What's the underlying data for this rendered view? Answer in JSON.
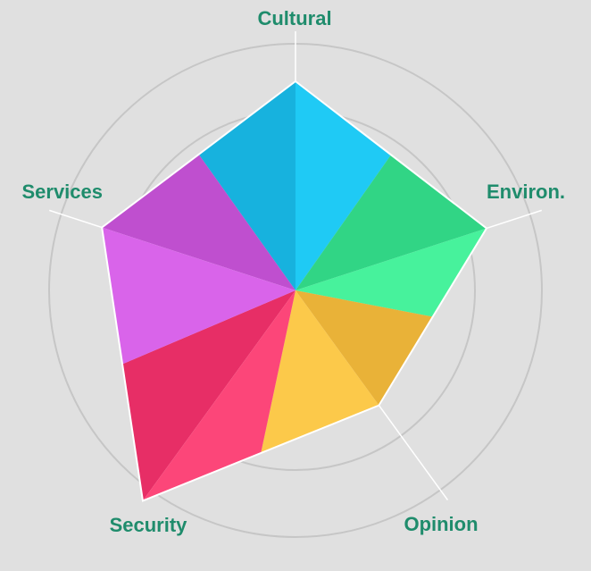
{
  "chart_data": {
    "type": "radar",
    "axes": [
      "Cultural",
      "Environ.",
      "Opinion",
      "Security",
      "Services"
    ],
    "values": [
      0.78,
      0.75,
      0.53,
      0.97,
      0.76
    ],
    "range": [
      0,
      1
    ],
    "rings": [
      0.67,
      0.92
    ],
    "grid": true,
    "colors": {
      "Cultural": [
        "#1fcaf5",
        "#17b2de"
      ],
      "Environ.": [
        "#47f29c",
        "#31d585"
      ],
      "Opinion": [
        "#fcc94a",
        "#e9b238"
      ],
      "Security": [
        "#e72e66",
        "#fc4679"
      ],
      "Services": [
        "#bf4fcf",
        "#d964ea"
      ],
      "grid": "#c6c6c6",
      "spoke": "#ffffff",
      "label": "#1f8c6c",
      "background": "#e0e0e0"
    }
  }
}
